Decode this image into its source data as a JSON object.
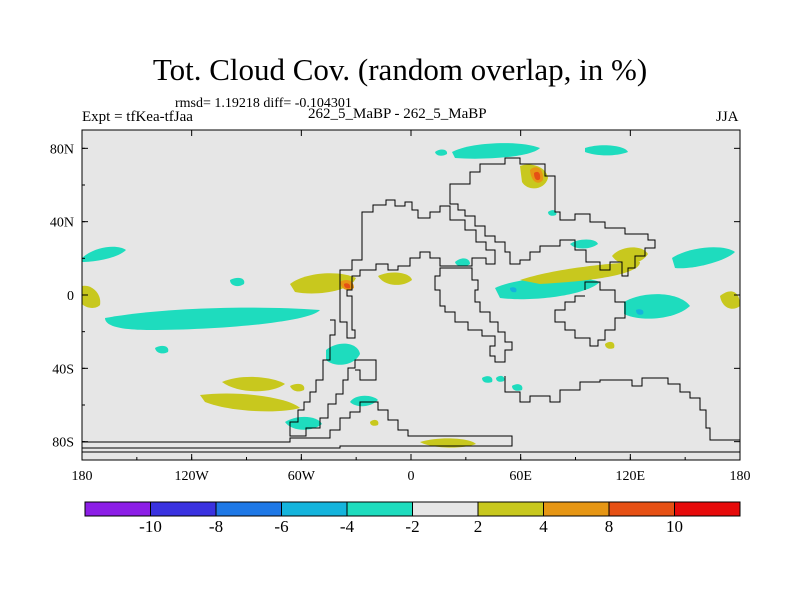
{
  "title": "Tot. Cloud Cov. (random overlap, in %)",
  "stats_text": "rmsd= 1.19218  diff= -0.104301",
  "left_label": "Expt = tfKea-tfJaa",
  "center_label": "262_5_MaBP - 262_5_MaBP",
  "right_label": "JJA",
  "lon_ticks": [
    {
      "lon": -180,
      "label": "180"
    },
    {
      "lon": -120,
      "label": "120W"
    },
    {
      "lon": -60,
      "label": "60W"
    },
    {
      "lon": 0,
      "label": "0"
    },
    {
      "lon": 60,
      "label": "60E"
    },
    {
      "lon": 120,
      "label": "120E"
    },
    {
      "lon": 180,
      "label": "180"
    }
  ],
  "lat_ticks": [
    {
      "lat": 80,
      "label": "80N"
    },
    {
      "lat": 40,
      "label": "40N"
    },
    {
      "lat": 0,
      "label": "0"
    },
    {
      "lat": -40,
      "label": "40S"
    },
    {
      "lat": -80,
      "label": "80S"
    }
  ],
  "colorbar": {
    "colors": [
      "#8c1ee6",
      "#3a32e0",
      "#1e78e6",
      "#14b4dc",
      "#1edcbe",
      "#e6e6e6",
      "#c8c81e",
      "#e69614",
      "#e65014",
      "#e60a0a"
    ],
    "labels": [
      "-10",
      "-8",
      "-6",
      "-4",
      "-2",
      "2",
      "4",
      "8",
      "10"
    ]
  },
  "colors": {
    "background": "#e6e6e6",
    "negative_small": "#1edcbe",
    "positive_small": "#c8c81e",
    "positive_mid": "#e69614",
    "positive_high": "#e65014"
  }
}
